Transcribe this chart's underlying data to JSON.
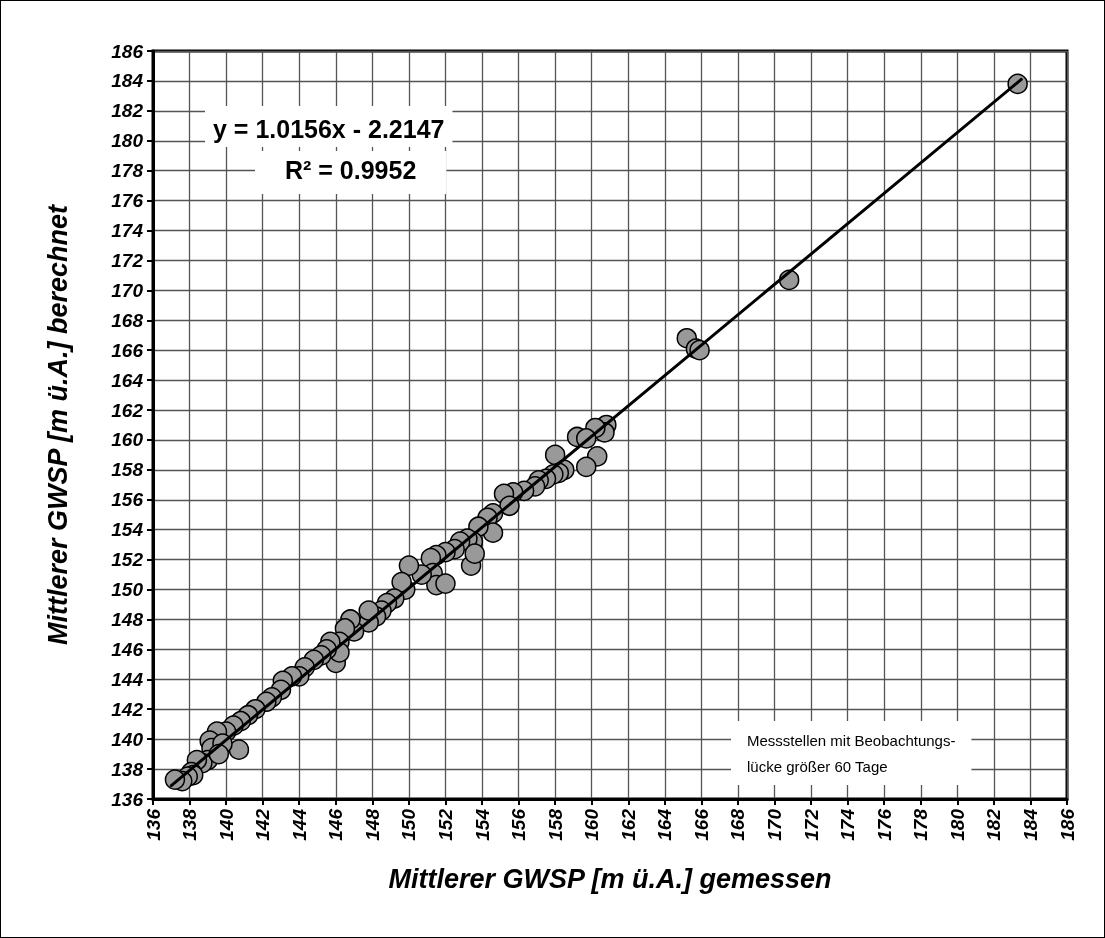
{
  "chart_data": {
    "type": "scatter",
    "xlabel": "Mittlerer GWSP [m ü.A.] gemessen",
    "ylabel": "Mittlerer GWSP [m ü.A.] berechnet",
    "annotations": [
      "y = 1.0156x - 2.2147",
      "R² = 0.9952",
      "Messstellen mit Beobachtungs-\nlücke größer 60 Tage"
    ],
    "series": [
      {
        "color": "#999999",
        "marker": "circle",
        "x": [
          183.3,
          170.8,
          165.2,
          165.7,
          165.9,
          160.8,
          160.7,
          160.2,
          159.2,
          159.7,
          160.3,
          159.7,
          158.0,
          158.5,
          158.2,
          157.9,
          157.5,
          157.1,
          156.9,
          156.3,
          155.7,
          155.2,
          155.5,
          154.6,
          154.3,
          154.6,
          153.8,
          153.5,
          153.2,
          152.8,
          152.5,
          153.4,
          153.6,
          152.0,
          151.5,
          151.2,
          151.3,
          151.5,
          152.0,
          150.7,
          150.0,
          149.8,
          149.6,
          149.2,
          148.8,
          148.5,
          148.2,
          147.8,
          147.8,
          147.0,
          146.8,
          146.5,
          146.2,
          146.0,
          146.2,
          145.7,
          145.5,
          145.2,
          144.8,
          144.3,
          144.0,
          143.6,
          143.1,
          143.0,
          142.5,
          142.2,
          141.6,
          141.2,
          140.8,
          140.7,
          140.4,
          140.0,
          139.5,
          139.1,
          139.2,
          139.0,
          138.7,
          138.4,
          138.1,
          138.2,
          137.9,
          137.6,
          137.2,
          139.8,
          139.6
        ],
        "values": [
          183.8,
          170.7,
          166.8,
          166.1,
          166.0,
          161.0,
          160.5,
          160.8,
          160.2,
          160.1,
          158.9,
          158.2,
          159.0,
          158.0,
          157.8,
          157.7,
          157.4,
          157.3,
          156.9,
          156.6,
          156.5,
          156.4,
          155.6,
          155.1,
          154.8,
          153.8,
          154.2,
          153.2,
          153.4,
          153.2,
          152.7,
          151.6,
          152.4,
          152.5,
          152.3,
          152.1,
          151.1,
          150.3,
          150.4,
          151.0,
          151.6,
          150.0,
          150.5,
          149.4,
          149.1,
          148.6,
          148.2,
          147.8,
          148.6,
          147.2,
          148.0,
          147.4,
          146.5,
          145.1,
          145.8,
          146.5,
          146.0,
          145.6,
          145.3,
          144.8,
          144.2,
          144.2,
          143.9,
          143.3,
          142.8,
          142.5,
          142.0,
          141.6,
          141.2,
          139.3,
          140.9,
          140.5,
          140.5,
          139.9,
          139.4,
          138.6,
          138.4,
          138.6,
          137.8,
          137.6,
          137.5,
          137.2,
          137.3,
          139.7,
          139.0
        ]
      },
      {
        "type": "line",
        "color": "#000000",
        "line_style": "solid",
        "marker": "none",
        "x": [
          137,
          183.5
        ],
        "values": [
          136.9,
          184.1
        ]
      }
    ],
    "xlim": [
      136,
      186
    ],
    "ylim": [
      136,
      186
    ],
    "xticks": [
      136,
      138,
      140,
      142,
      144,
      146,
      148,
      150,
      152,
      154,
      156,
      158,
      160,
      162,
      164,
      166,
      168,
      170,
      172,
      174,
      176,
      178,
      180,
      182,
      184,
      186
    ],
    "yticks": [
      136,
      138,
      140,
      142,
      144,
      146,
      148,
      150,
      152,
      154,
      156,
      158,
      160,
      162,
      164,
      166,
      168,
      170,
      172,
      174,
      176,
      178,
      180,
      182,
      184,
      186
    ],
    "grid": true
  }
}
